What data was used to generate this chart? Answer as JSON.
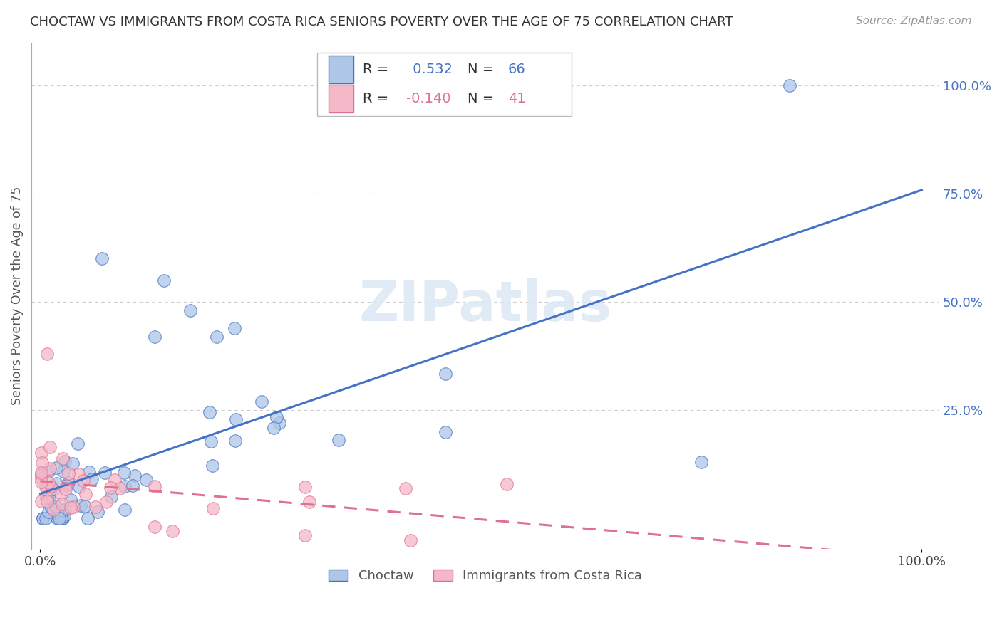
{
  "title": "CHOCTAW VS IMMIGRANTS FROM COSTA RICA SENIORS POVERTY OVER THE AGE OF 75 CORRELATION CHART",
  "source": "Source: ZipAtlas.com",
  "ylabel": "Seniors Poverty Over the Age of 75",
  "background_color": "#ffffff",
  "choctaw_color": "#aec6e8",
  "costarica_color": "#f4b8c8",
  "choctaw_line_color": "#4472c4",
  "costarica_line_color": "#e07090",
  "grid_color": "#cccccc",
  "R_choctaw": 0.532,
  "N_choctaw": 66,
  "R_costarica": -0.14,
  "N_costarica": 41,
  "watermark": "ZIPatlas",
  "legend_choctaw": "Choctaw",
  "legend_costarica": "Immigrants from Costa Rica",
  "ytick_color": "#4472c4",
  "ytick_labels": [
    "25.0%",
    "50.0%",
    "75.0%",
    "100.0%"
  ],
  "ytick_vals": [
    0.25,
    0.5,
    0.75,
    1.0
  ]
}
